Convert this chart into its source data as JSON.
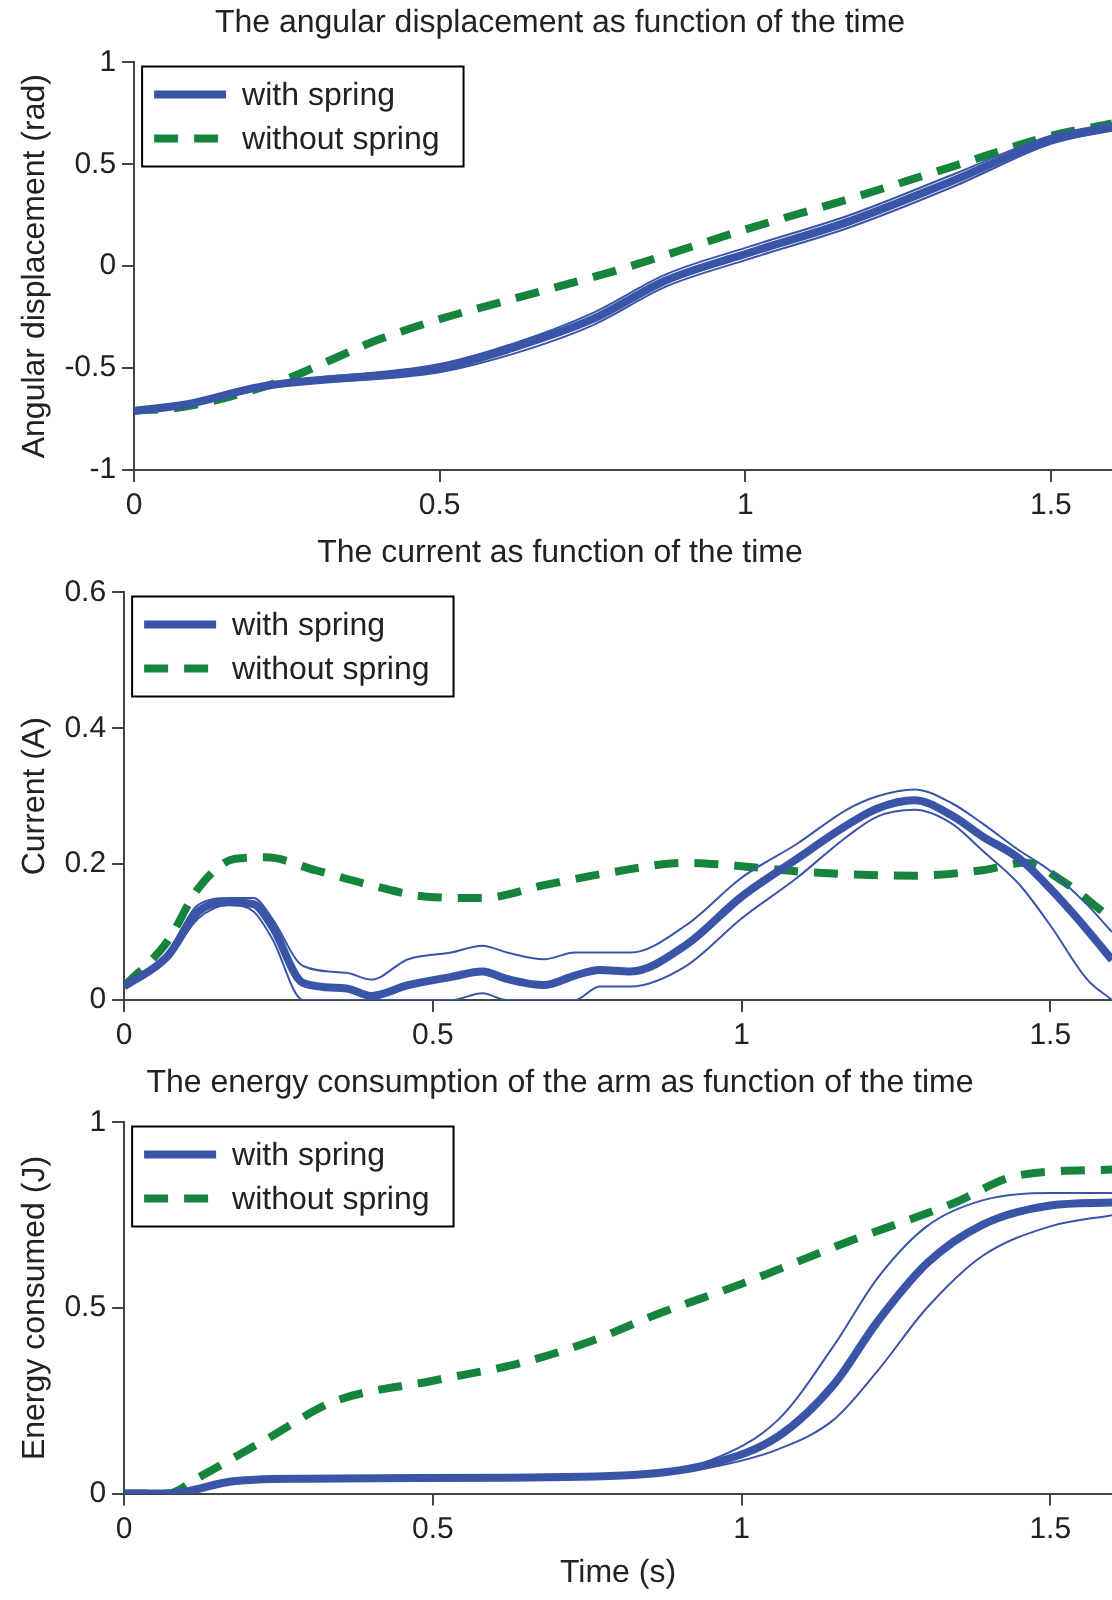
{
  "chart_data": [
    {
      "type": "line",
      "title": "The angular displacement as function of the time",
      "ylabel": "Angular displacement (rad)",
      "xlim": [
        0,
        1.6
      ],
      "xticks": [
        0,
        0.5,
        1,
        1.5
      ],
      "ylim": [
        -1,
        1
      ],
      "yticks": [
        -1,
        -0.5,
        0,
        0.5,
        1
      ],
      "legend": "top left",
      "marker": "none",
      "series": [
        {
          "name": "with spring",
          "color": "#3a55a8",
          "line_style": "solid",
          "x": [
            0,
            0.082,
            0.21,
            0.5,
            0.62,
            0.75,
            0.87,
            1.0,
            1.17,
            1.34,
            1.5,
            1.6
          ],
          "values": [
            -0.71,
            -0.68,
            -0.59,
            -0.5,
            -0.4,
            -0.26,
            -0.07,
            0.06,
            0.22,
            0.42,
            0.62,
            0.68
          ]
        },
        {
          "color": "#3a55a8",
          "line_style": "solid",
          "x": [
            0,
            0.082,
            0.21,
            0.5,
            0.62,
            0.75,
            0.87,
            1.0,
            1.17,
            1.34,
            1.5,
            1.6
          ],
          "values": [
            -0.72,
            -0.69,
            -0.6,
            -0.52,
            -0.43,
            -0.29,
            -0.1,
            0.03,
            0.19,
            0.39,
            0.6,
            0.67
          ]
        },
        {
          "color": "#3a55a8",
          "line_style": "solid",
          "x": [
            0,
            0.082,
            0.21,
            0.5,
            0.62,
            0.75,
            0.87,
            1.0,
            1.17,
            1.34,
            1.5,
            1.6
          ],
          "values": [
            -0.7,
            -0.67,
            -0.58,
            -0.48,
            -0.38,
            -0.23,
            -0.04,
            0.09,
            0.25,
            0.45,
            0.64,
            0.7
          ]
        },
        {
          "name": "without spring",
          "color": "#16843c",
          "line_style": "dashed",
          "x": [
            0,
            0.082,
            0.234,
            0.4,
            0.5,
            0.62,
            0.79,
            1.0,
            1.17,
            1.34,
            1.5,
            1.6
          ],
          "values": [
            -0.71,
            -0.69,
            -0.57,
            -0.36,
            -0.26,
            -0.16,
            -0.02,
            0.18,
            0.33,
            0.49,
            0.64,
            0.7
          ]
        }
      ]
    },
    {
      "type": "line",
      "title": "The current as function of the time",
      "ylabel": "Current (A)",
      "xlim": [
        0,
        1.6
      ],
      "xticks": [
        0,
        0.5,
        1,
        1.5
      ],
      "ylim": [
        0,
        0.6
      ],
      "yticks": [
        0,
        0.2,
        0.4,
        0.6
      ],
      "legend": "top left",
      "marker": "none",
      "series": [
        {
          "name": "with spring",
          "color": "#3a55a8",
          "line_style": "solid",
          "x": [
            0,
            0.07,
            0.12,
            0.17,
            0.21,
            0.24,
            0.29,
            0.36,
            0.4,
            0.46,
            0.53,
            0.58,
            0.62,
            0.68,
            0.73,
            0.77,
            0.82,
            0.91,
            1.0,
            1.09,
            1.17,
            1.22,
            1.28,
            1.34,
            1.39,
            1.45,
            1.5,
            1.56,
            1.6
          ],
          "values": [
            0.02,
            0.064,
            0.13,
            0.144,
            0.141,
            0.108,
            0.025,
            0.017,
            0.006,
            0.022,
            0.034,
            0.042,
            0.031,
            0.022,
            0.036,
            0.044,
            0.042,
            0.081,
            0.152,
            0.208,
            0.257,
            0.282,
            0.294,
            0.272,
            0.241,
            0.208,
            0.164,
            0.103,
            0.059
          ]
        },
        {
          "color": "#3a55a8",
          "line_style": "solid",
          "x": [
            0,
            0.07,
            0.12,
            0.17,
            0.21,
            0.24,
            0.29,
            0.36,
            0.4,
            0.46,
            0.53,
            0.58,
            0.62,
            0.68,
            0.73,
            0.77,
            0.82,
            0.91,
            1.0,
            1.09,
            1.17,
            1.22,
            1.28,
            1.34,
            1.39,
            1.45,
            1.5,
            1.56,
            1.6
          ],
          "values": [
            0.02,
            0.06,
            0.12,
            0.14,
            0.13,
            0.09,
            0,
            0,
            0,
            0,
            0,
            0.01,
            0,
            0,
            0,
            0.02,
            0.02,
            0.05,
            0.12,
            0.18,
            0.24,
            0.27,
            0.28,
            0.26,
            0.22,
            0.17,
            0.11,
            0.03,
            0
          ]
        },
        {
          "color": "#3a55a8",
          "line_style": "solid",
          "x": [
            0,
            0.07,
            0.12,
            0.17,
            0.21,
            0.24,
            0.29,
            0.36,
            0.4,
            0.46,
            0.53,
            0.58,
            0.62,
            0.68,
            0.73,
            0.77,
            0.82,
            0.91,
            1.0,
            1.09,
            1.17,
            1.22,
            1.28,
            1.34,
            1.39,
            1.45,
            1.5,
            1.56,
            1.6
          ],
          "values": [
            0.02,
            0.07,
            0.14,
            0.15,
            0.15,
            0.12,
            0.05,
            0.04,
            0.03,
            0.06,
            0.07,
            0.08,
            0.07,
            0.06,
            0.07,
            0.07,
            0.07,
            0.11,
            0.18,
            0.23,
            0.28,
            0.3,
            0.31,
            0.29,
            0.26,
            0.22,
            0.19,
            0.14,
            0.1
          ]
        },
        {
          "name": "without spring",
          "color": "#16843c",
          "line_style": "dashed",
          "x": [
            0,
            0.07,
            0.12,
            0.18,
            0.23,
            0.31,
            0.4,
            0.49,
            0.58,
            0.68,
            0.79,
            0.91,
            1.0,
            1.11,
            1.28,
            1.39,
            1.46,
            1.52,
            1.6
          ],
          "values": [
            0.02,
            0.086,
            0.164,
            0.208,
            0.21,
            0.191,
            0.169,
            0.152,
            0.15,
            0.169,
            0.188,
            0.202,
            0.197,
            0.188,
            0.183,
            0.191,
            0.202,
            0.175,
            0.119
          ]
        }
      ]
    },
    {
      "type": "line",
      "title": "The energy consumption of the arm as function of the time",
      "xlabel": "Time (s)",
      "ylabel": "Energy consumed (J)",
      "xlim": [
        0,
        1.6
      ],
      "xticks": [
        0,
        0.5,
        1,
        1.5
      ],
      "ylim": [
        0,
        1
      ],
      "yticks": [
        0,
        0.5,
        1
      ],
      "legend": "top left",
      "marker": "none",
      "series": [
        {
          "name": "with spring",
          "color": "#3a55a8",
          "line_style": "solid",
          "x": [
            0,
            0.07,
            0.18,
            0.29,
            0.62,
            0.84,
            0.95,
            1.06,
            1.15,
            1.22,
            1.3,
            1.39,
            1.5,
            1.6
          ],
          "values": [
            0,
            0,
            0.034,
            0.04,
            0.043,
            0.052,
            0.08,
            0.155,
            0.295,
            0.463,
            0.62,
            0.724,
            0.776,
            0.784
          ]
        },
        {
          "color": "#3a55a8",
          "line_style": "solid",
          "x": [
            0,
            0.07,
            0.18,
            0.29,
            0.62,
            0.84,
            0.95,
            1.06,
            1.15,
            1.22,
            1.3,
            1.39,
            1.5,
            1.6
          ],
          "values": [
            0,
            0,
            0.03,
            0.035,
            0.04,
            0.048,
            0.07,
            0.12,
            0.2,
            0.33,
            0.5,
            0.64,
            0.72,
            0.75
          ]
        },
        {
          "color": "#3a55a8",
          "line_style": "solid",
          "x": [
            0,
            0.07,
            0.18,
            0.29,
            0.62,
            0.84,
            0.95,
            1.06,
            1.15,
            1.22,
            1.3,
            1.39,
            1.5,
            1.6
          ],
          "values": [
            0,
            0,
            0.04,
            0.04,
            0.045,
            0.055,
            0.09,
            0.2,
            0.4,
            0.58,
            0.72,
            0.79,
            0.81,
            0.81
          ]
        },
        {
          "name": "without spring",
          "color": "#16843c",
          "line_style": "dashed",
          "x": [
            0,
            0.07,
            0.12,
            0.23,
            0.34,
            0.5,
            0.64,
            0.75,
            0.86,
            1.0,
            1.17,
            1.34,
            1.45,
            1.6
          ],
          "values": [
            0,
            0,
            0.043,
            0.146,
            0.248,
            0.304,
            0.351,
            0.407,
            0.481,
            0.565,
            0.677,
            0.78,
            0.858,
            0.873
          ]
        }
      ]
    }
  ]
}
